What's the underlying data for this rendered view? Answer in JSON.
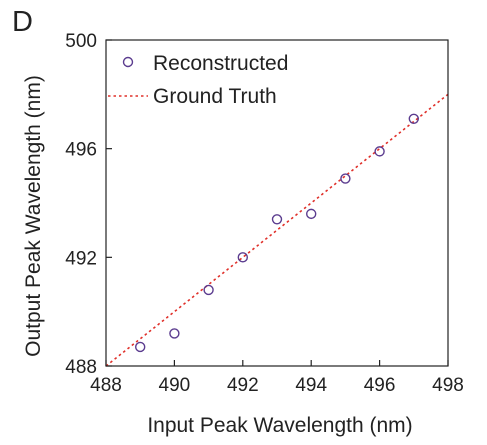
{
  "panel_label": "D",
  "chart_data": {
    "type": "scatter",
    "title": "",
    "xlabel": "Input Peak Wavelength (nm)",
    "ylabel": "Output Peak Wavelength (nm)",
    "xlim": [
      488,
      498
    ],
    "ylim": [
      488,
      500
    ],
    "xticks": [
      488,
      490,
      492,
      494,
      496,
      498
    ],
    "yticks": [
      488,
      492,
      496,
      500
    ],
    "grid": false,
    "legend_position": "top-left",
    "series": [
      {
        "name": "Reconstructed",
        "kind": "scatter",
        "marker": "open-circle",
        "color": "#5b3c8f",
        "x": [
          489,
          490,
          491,
          492,
          493,
          494,
          495,
          496,
          497
        ],
        "y": [
          488.7,
          489.2,
          490.8,
          492.0,
          493.4,
          493.6,
          494.9,
          495.9,
          497.1
        ]
      },
      {
        "name": "Ground Truth",
        "kind": "line",
        "style": "dotted",
        "color": "#e0302a",
        "x": [
          488,
          498
        ],
        "y": [
          488,
          498
        ]
      }
    ]
  }
}
